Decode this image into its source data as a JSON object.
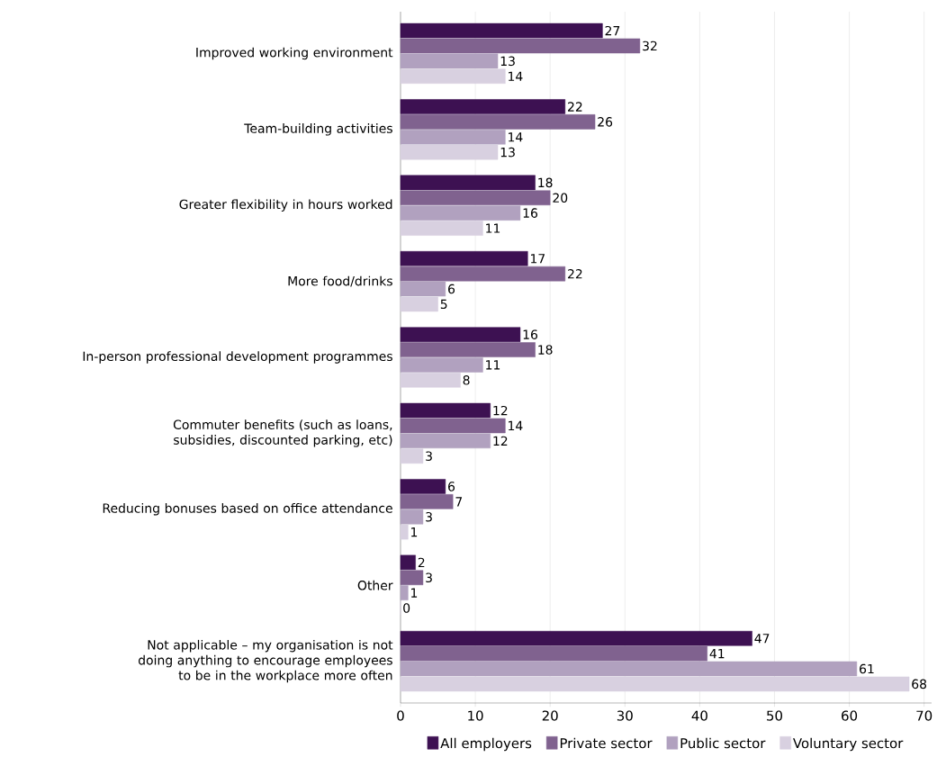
{
  "chart_data": {
    "type": "bar",
    "orientation": "horizontal",
    "categories": [
      "Improved working environment",
      "Team-building activities",
      "Greater flexibility in hours worked",
      "More food/drinks",
      "In-person professional development programmes",
      "Commuter benefits (such as loans, subsidies, discounted parking, etc)",
      "Reducing bonuses based on office attendance",
      "Other",
      "Not applicable – my organisation is not doing anything to encourage employees to be in the workplace more often"
    ],
    "series": [
      {
        "name": "All employers",
        "color": "#3d1152",
        "values": [
          27,
          22,
          18,
          17,
          16,
          12,
          6,
          2,
          47
        ]
      },
      {
        "name": "Private sector",
        "color": "#80628f",
        "values": [
          32,
          26,
          20,
          22,
          18,
          14,
          7,
          3,
          41
        ]
      },
      {
        "name": "Public sector",
        "color": "#b1a1bf",
        "values": [
          13,
          14,
          16,
          6,
          11,
          12,
          3,
          1,
          61
        ]
      },
      {
        "name": "Voluntary sector",
        "color": "#d8d0e0",
        "values": [
          14,
          13,
          11,
          5,
          8,
          3,
          1,
          0,
          68
        ]
      }
    ],
    "xlim": [
      0,
      71
    ],
    "xticks": [
      0,
      10,
      20,
      30,
      40,
      50,
      60,
      70
    ],
    "grid": "x",
    "legend": "bottom",
    "data_labels": true
  }
}
